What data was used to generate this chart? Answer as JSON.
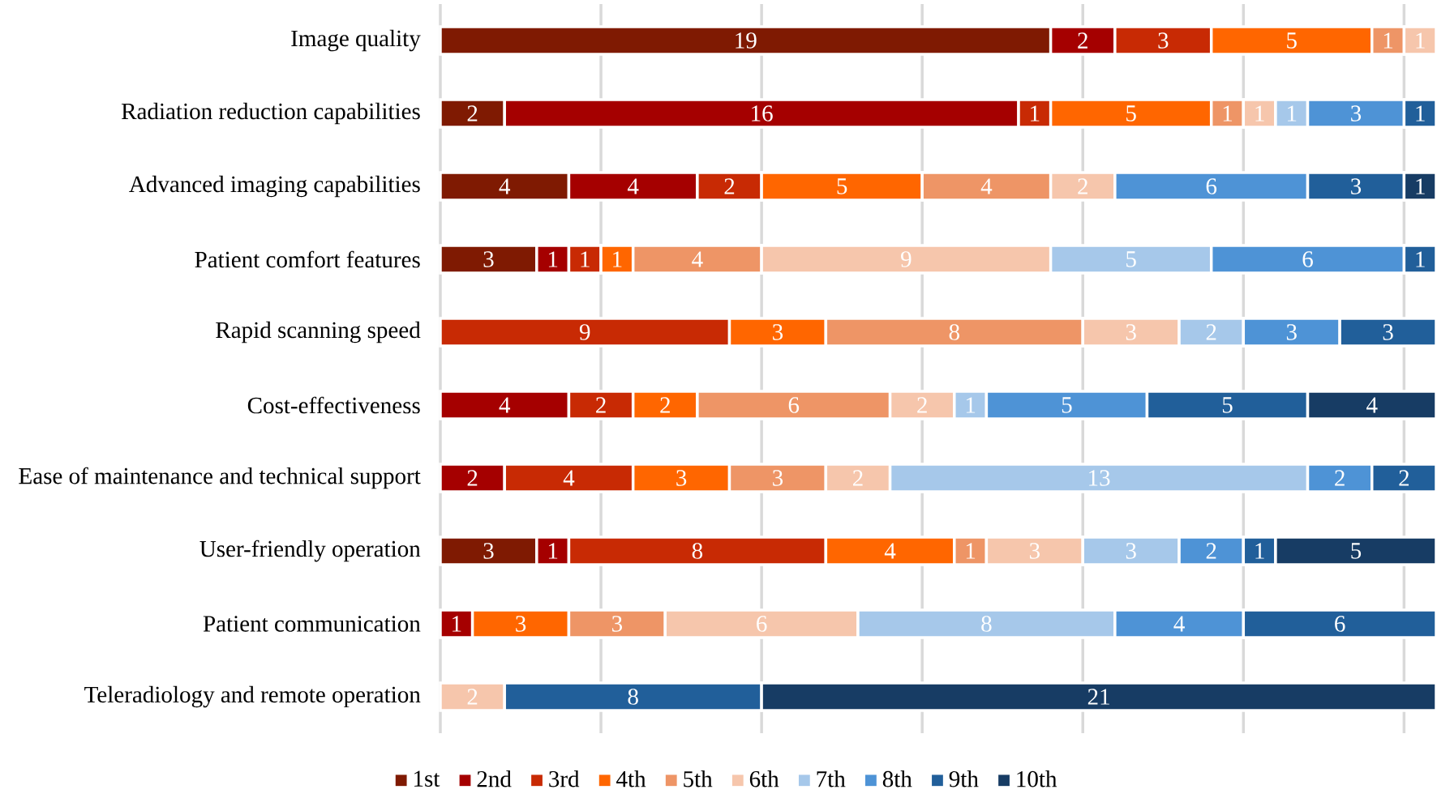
{
  "chart_data": {
    "type": "bar",
    "orientation": "horizontal",
    "stacked": true,
    "data_labels": true,
    "grid": "x",
    "legend": "bottom",
    "tick_labels": "y",
    "categories": [
      "Image quality",
      "Radiation reduction capabilities",
      "Advanced imaging capabilities",
      "Patient comfort features",
      "Rapid scanning speed",
      "Cost-effectiveness",
      "Ease of maintenance and technical support",
      "User-friendly operation",
      "Patient communication",
      "Teleradiology and remote operation"
    ],
    "xlim": [
      0,
      31
    ],
    "xticks": [
      {
        "value": 0,
        "label": null
      },
      {
        "value": 5,
        "label": null
      },
      {
        "value": 10,
        "label": null
      },
      {
        "value": 15,
        "label": null
      },
      {
        "value": 20,
        "label": null
      },
      {
        "value": 25,
        "label": null
      },
      {
        "value": 30,
        "label": null
      }
    ],
    "series": [
      {
        "name": "1st",
        "color": "#7f1a02",
        "values": [
          19,
          2,
          4,
          3,
          null,
          null,
          null,
          3,
          null,
          null
        ]
      },
      {
        "name": "2nd",
        "color": "#a50000",
        "values": [
          2,
          16,
          4,
          1,
          null,
          4,
          2,
          1,
          1,
          null
        ]
      },
      {
        "name": "3rd",
        "color": "#c82a04",
        "values": [
          3,
          1,
          2,
          1,
          9,
          2,
          4,
          8,
          null,
          null
        ]
      },
      {
        "name": "4th",
        "color": "#ff6600",
        "values": [
          5,
          5,
          5,
          1,
          3,
          2,
          3,
          4,
          3,
          null
        ]
      },
      {
        "name": "5th",
        "color": "#ee9566",
        "values": [
          1,
          1,
          4,
          4,
          8,
          6,
          3,
          1,
          3,
          null
        ]
      },
      {
        "name": "6th",
        "color": "#f6c6ac",
        "values": [
          1,
          1,
          2,
          9,
          3,
          2,
          2,
          3,
          6,
          2
        ]
      },
      {
        "name": "7th",
        "color": "#a6c8ea",
        "values": [
          null,
          1,
          null,
          5,
          2,
          1,
          13,
          3,
          8,
          null
        ]
      },
      {
        "name": "8th",
        "color": "#4e93d6",
        "values": [
          null,
          3,
          6,
          6,
          3,
          5,
          2,
          2,
          4,
          null
        ]
      },
      {
        "name": "9th",
        "color": "#215f9a",
        "values": [
          null,
          1,
          3,
          1,
          3,
          5,
          2,
          1,
          6,
          8
        ]
      },
      {
        "name": "10th",
        "color": "#173c64",
        "values": [
          null,
          null,
          1,
          null,
          null,
          4,
          null,
          5,
          null,
          21
        ]
      }
    ]
  }
}
